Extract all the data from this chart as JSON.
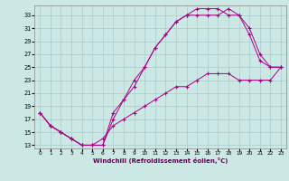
{
  "xlabel": "Windchill (Refroidissement éolien,°C)",
  "bg_color": "#cce8e4",
  "grid_color": "#aacccc",
  "line_color": "#aa0088",
  "xlim": [
    -0.5,
    23.5
  ],
  "ylim": [
    12.5,
    34.5
  ],
  "xticks": [
    0,
    1,
    2,
    3,
    4,
    5,
    6,
    7,
    8,
    9,
    10,
    11,
    12,
    13,
    14,
    15,
    16,
    17,
    18,
    19,
    20,
    21,
    22,
    23
  ],
  "yticks": [
    13,
    15,
    17,
    19,
    21,
    23,
    25,
    27,
    29,
    31,
    33
  ],
  "line1_x": [
    0,
    1,
    2,
    3,
    4,
    5,
    6,
    7,
    8,
    9,
    10,
    11,
    12,
    13,
    14,
    15,
    16,
    17,
    18,
    19,
    20,
    21,
    22,
    23
  ],
  "line1_y": [
    18,
    16,
    15,
    14,
    13,
    13,
    13,
    17,
    20,
    22,
    25,
    28,
    30,
    32,
    33,
    33,
    33,
    33,
    34,
    33,
    30,
    26,
    25,
    25
  ],
  "line2_x": [
    0,
    1,
    2,
    3,
    4,
    5,
    6,
    7,
    8,
    9,
    10,
    11,
    12,
    13,
    14,
    15,
    16,
    17,
    18,
    19,
    20,
    21,
    22,
    23
  ],
  "line2_y": [
    18,
    16,
    15,
    14,
    13,
    13,
    13,
    18,
    20,
    23,
    25,
    28,
    30,
    32,
    33,
    34,
    34,
    34,
    33,
    33,
    31,
    27,
    25,
    25
  ],
  "line3_x": [
    0,
    1,
    2,
    3,
    4,
    5,
    6,
    7,
    8,
    9,
    10,
    11,
    12,
    13,
    14,
    15,
    16,
    17,
    18,
    19,
    20,
    21,
    22,
    23
  ],
  "line3_y": [
    18,
    16,
    15,
    14,
    13,
    13,
    14,
    16,
    17,
    18,
    19,
    20,
    21,
    22,
    22,
    23,
    24,
    24,
    24,
    23,
    23,
    23,
    23,
    25
  ]
}
